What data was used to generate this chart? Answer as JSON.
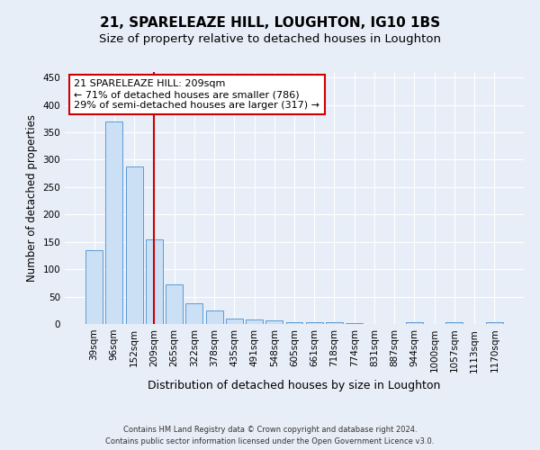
{
  "title": "21, SPARELEAZE HILL, LOUGHTON, IG10 1BS",
  "subtitle": "Size of property relative to detached houses in Loughton",
  "xlabel": "Distribution of detached houses by size in Loughton",
  "ylabel": "Number of detached properties",
  "categories": [
    "39sqm",
    "96sqm",
    "152sqm",
    "209sqm",
    "265sqm",
    "322sqm",
    "378sqm",
    "435sqm",
    "491sqm",
    "548sqm",
    "605sqm",
    "661sqm",
    "718sqm",
    "774sqm",
    "831sqm",
    "887sqm",
    "944sqm",
    "1000sqm",
    "1057sqm",
    "1113sqm",
    "1170sqm"
  ],
  "values": [
    135,
    370,
    288,
    155,
    72,
    37,
    25,
    10,
    8,
    7,
    4,
    4,
    4,
    2,
    0,
    0,
    4,
    0,
    3,
    0,
    3
  ],
  "bar_color": "#cce0f5",
  "bar_edge_color": "#5b9bd5",
  "highlight_line_color": "#cc0000",
  "highlight_bar_index": 3,
  "ylim": [
    0,
    460
  ],
  "yticks": [
    0,
    50,
    100,
    150,
    200,
    250,
    300,
    350,
    400,
    450
  ],
  "annotation_text": "21 SPARELEAZE HILL: 209sqm\n← 71% of detached houses are smaller (786)\n29% of semi-detached houses are larger (317) →",
  "annotation_box_color": "#ffffff",
  "annotation_box_edge_color": "#cc0000",
  "footer_line1": "Contains HM Land Registry data © Crown copyright and database right 2024.",
  "footer_line2": "Contains public sector information licensed under the Open Government Licence v3.0.",
  "background_color": "#e8eef8",
  "grid_color": "#ffffff",
  "title_fontsize": 11,
  "subtitle_fontsize": 9.5,
  "tick_fontsize": 7.5,
  "ylabel_fontsize": 8.5,
  "xlabel_fontsize": 9,
  "footer_fontsize": 6,
  "annotation_fontsize": 8
}
